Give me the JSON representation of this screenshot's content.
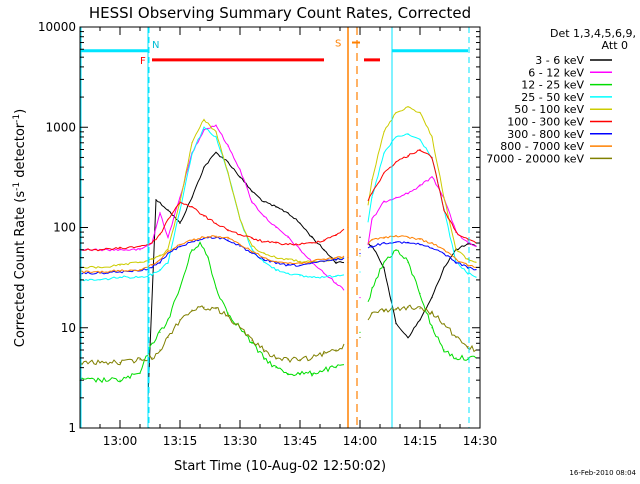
{
  "chart_data": {
    "type": "line",
    "title": "HESSI Observing Summary Count Rates, Corrected",
    "xlabel": "Start Time (10-Aug-02 12:50:02)",
    "ylabel": "Corrected Count Rate (s⁻¹ detector⁻¹)",
    "ylabel_main": "Corrected Count Rate (s",
    "ylabel_sup1": "-1",
    "ylabel_mid": " detector",
    "ylabel_sup2": "-1",
    "ylabel_end": ")",
    "footer": "16-Feb-2010 08:04",
    "y_scale": "log",
    "ylim": [
      1,
      10000
    ],
    "y_ticks": [
      1,
      10,
      100,
      1000,
      10000
    ],
    "y_tick_labels": [
      "1",
      "10",
      "100",
      "1000",
      "10000"
    ],
    "xlim": [
      "12:50",
      "14:30"
    ],
    "x_ticks": [
      "13:00",
      "13:15",
      "13:30",
      "13:45",
      "14:00",
      "14:15",
      "14:30"
    ],
    "legend": {
      "title_line1": "Det 1,3,4,5,6,9,",
      "title_line2": "Att 0",
      "placement": "right"
    },
    "series": [
      {
        "name": "3 - 6 keV",
        "color": "#000000",
        "x": [
          "13:07",
          "13:09",
          "13:12",
          "13:15",
          "13:18",
          "13:21",
          "13:24",
          "13:27",
          "13:30",
          "13:33",
          "13:36",
          "13:39",
          "13:42",
          "13:45",
          "13:48",
          "13:51",
          "13:54",
          "13:57",
          "14:00",
          "14:03",
          "14:06",
          "14:09",
          "14:12",
          "14:15",
          "14:18",
          "14:21",
          "14:24",
          "14:27",
          "14:29"
        ],
        "values": [
          2,
          190,
          150,
          110,
          200,
          400,
          560,
          450,
          320,
          230,
          180,
          160,
          140,
          110,
          80,
          60,
          45,
          45,
          80,
          65,
          40,
          11,
          8,
          12,
          20,
          40,
          60,
          68,
          65
        ]
      },
      {
        "name": "6 - 12 keV",
        "color": "#ff00ff",
        "x": [
          "12:50",
          "12:55",
          "13:00",
          "13:05",
          "13:08",
          "13:10",
          "13:12",
          "13:15",
          "13:18",
          "13:21",
          "13:24",
          "13:27",
          "13:30",
          "13:33",
          "13:36",
          "13:39",
          "13:42",
          "13:45",
          "13:48",
          "13:51",
          "13:54",
          "13:57",
          "14:00",
          "14:03",
          "14:06",
          "14:09",
          "14:12",
          "14:15",
          "14:18",
          "14:21",
          "14:24",
          "14:27",
          "14:29"
        ],
        "values": [
          60,
          60,
          60,
          60,
          70,
          140,
          80,
          200,
          550,
          950,
          1050,
          650,
          380,
          180,
          130,
          100,
          80,
          60,
          45,
          35,
          28,
          22,
          20,
          120,
          180,
          200,
          220,
          260,
          320,
          200,
          90,
          70,
          65
        ]
      },
      {
        "name": "12 - 25 keV",
        "color": "#00dd00",
        "x": [
          "12:50",
          "12:55",
          "13:00",
          "13:05",
          "13:08",
          "13:10",
          "13:12",
          "13:15",
          "13:18",
          "13:20",
          "13:22",
          "13:24",
          "13:27",
          "13:30",
          "13:33",
          "13:36",
          "13:39",
          "13:42",
          "13:45",
          "13:48",
          "13:51",
          "13:54",
          "13:57",
          "14:00",
          "14:03",
          "14:06",
          "14:09",
          "14:12",
          "14:15",
          "14:18",
          "14:21",
          "14:24",
          "14:27",
          "14:29"
        ],
        "values": [
          3,
          3,
          3,
          3.5,
          7,
          9,
          12,
          25,
          60,
          70,
          50,
          25,
          14,
          10,
          7,
          5,
          4,
          3.5,
          3.5,
          3.5,
          3.8,
          4,
          4.5,
          9,
          25,
          45,
          60,
          45,
          22,
          10,
          6,
          5,
          5,
          5
        ]
      },
      {
        "name": "25 - 50 keV",
        "color": "#00ffff",
        "x": [
          "12:50",
          "12:55",
          "13:00",
          "13:05",
          "13:08",
          "13:10",
          "13:12",
          "13:15",
          "13:18",
          "13:21",
          "13:24",
          "13:27",
          "13:30",
          "13:33",
          "13:36",
          "13:39",
          "13:42",
          "13:45",
          "13:48",
          "13:51",
          "13:54",
          "13:57",
          "14:00",
          "14:03",
          "14:06",
          "14:09",
          "14:12",
          "14:15",
          "14:18",
          "14:21",
          "14:24",
          "14:27",
          "14:29"
        ],
        "values": [
          30,
          30,
          32,
          32,
          34,
          38,
          45,
          150,
          550,
          1000,
          800,
          350,
          120,
          60,
          45,
          38,
          35,
          33,
          32,
          32,
          33,
          35,
          36,
          200,
          550,
          800,
          850,
          750,
          500,
          150,
          45,
          35,
          32
        ]
      },
      {
        "name": "50 - 100 keV",
        "color": "#cccc00",
        "x": [
          "12:50",
          "12:55",
          "13:00",
          "13:05",
          "13:08",
          "13:10",
          "13:12",
          "13:15",
          "13:18",
          "13:21",
          "13:24",
          "13:27",
          "13:30",
          "13:33",
          "13:36",
          "13:39",
          "13:42",
          "13:45",
          "13:48",
          "13:51",
          "13:54",
          "13:57",
          "14:00",
          "14:03",
          "14:06",
          "14:09",
          "14:12",
          "14:15",
          "14:18",
          "14:21",
          "14:24",
          "14:27",
          "14:29"
        ],
        "values": [
          40,
          40,
          42,
          45,
          48,
          52,
          60,
          180,
          700,
          1200,
          900,
          350,
          120,
          65,
          55,
          50,
          48,
          46,
          45,
          46,
          48,
          50,
          52,
          300,
          900,
          1400,
          1600,
          1400,
          800,
          200,
          60,
          48,
          45
        ]
      },
      {
        "name": "100 - 300 keV",
        "color": "#ff0000",
        "x": [
          "12:50",
          "12:55",
          "13:00",
          "13:05",
          "13:08",
          "13:10",
          "13:12",
          "13:15",
          "13:18",
          "13:21",
          "13:24",
          "13:27",
          "13:30",
          "13:33",
          "13:36",
          "13:39",
          "13:42",
          "13:45",
          "13:48",
          "13:51",
          "13:54",
          "13:57",
          "14:00",
          "14:03",
          "14:06",
          "14:09",
          "14:12",
          "14:15",
          "14:18",
          "14:21",
          "14:24",
          "14:27",
          "14:29"
        ],
        "values": [
          60,
          60,
          62,
          65,
          70,
          85,
          120,
          180,
          160,
          130,
          110,
          95,
          85,
          78,
          72,
          70,
          68,
          68,
          70,
          75,
          85,
          100,
          130,
          220,
          350,
          450,
          520,
          600,
          500,
          150,
          90,
          75,
          70
        ]
      },
      {
        "name": "300 - 800 keV",
        "color": "#0000ff",
        "x": [
          "12:50",
          "12:55",
          "13:00",
          "13:05",
          "13:08",
          "13:10",
          "13:12",
          "13:15",
          "13:18",
          "13:21",
          "13:24",
          "13:27",
          "13:30",
          "13:33",
          "13:36",
          "13:39",
          "13:42",
          "13:45",
          "13:48",
          "13:51",
          "13:54",
          "13:57",
          "14:00",
          "14:03",
          "14:06",
          "14:09",
          "14:12",
          "14:15",
          "14:18",
          "14:21",
          "14:24",
          "14:27",
          "14:29"
        ],
        "values": [
          35,
          35,
          36,
          37,
          40,
          45,
          55,
          65,
          72,
          78,
          80,
          75,
          65,
          55,
          48,
          44,
          42,
          42,
          44,
          46,
          48,
          50,
          55,
          65,
          70,
          72,
          70,
          68,
          62,
          55,
          45,
          40,
          38
        ]
      },
      {
        "name": "800 - 7000 keV",
        "color": "#ff8000",
        "x": [
          "12:50",
          "12:55",
          "13:00",
          "13:05",
          "13:08",
          "13:10",
          "13:12",
          "13:15",
          "13:18",
          "13:21",
          "13:24",
          "13:27",
          "13:30",
          "13:33",
          "13:36",
          "13:39",
          "13:42",
          "13:45",
          "13:48",
          "13:51",
          "13:54",
          "13:57",
          "14:00",
          "14:03",
          "14:06",
          "14:09",
          "14:12",
          "14:15",
          "14:18",
          "14:21",
          "14:24",
          "14:27",
          "14:29"
        ],
        "values": [
          36,
          36,
          37,
          38,
          42,
          48,
          58,
          68,
          75,
          80,
          82,
          78,
          68,
          58,
          50,
          46,
          44,
          44,
          46,
          48,
          50,
          52,
          60,
          75,
          80,
          82,
          80,
          76,
          70,
          60,
          48,
          42,
          40
        ]
      },
      {
        "name": "7000 - 20000 keV",
        "color": "#808000",
        "x": [
          "12:50",
          "12:55",
          "13:00",
          "13:05",
          "13:08",
          "13:10",
          "13:12",
          "13:15",
          "13:18",
          "13:21",
          "13:24",
          "13:27",
          "13:30",
          "13:33",
          "13:36",
          "13:39",
          "13:42",
          "13:45",
          "13:48",
          "13:51",
          "13:54",
          "13:57",
          "14:00",
          "14:03",
          "14:06",
          "14:09",
          "14:12",
          "14:15",
          "14:18",
          "14:21",
          "14:24",
          "14:27",
          "14:29"
        ],
        "values": [
          4.5,
          4.5,
          4.5,
          4.8,
          5,
          6,
          8,
          12,
          15,
          16,
          15.5,
          13,
          10,
          7.5,
          6,
          5,
          4.8,
          4.8,
          5,
          5.5,
          6,
          7,
          8,
          14,
          15,
          15.5,
          16,
          15.5,
          14,
          11,
          8,
          6.5,
          6
        ]
      }
    ],
    "annotations": {
      "N_label": "N",
      "F_label": "F",
      "S_label": "S",
      "night_segments": [
        {
          "x": [
            "12:50",
            "13:07"
          ],
          "y": 5800
        },
        {
          "x": [
            "14:08",
            "14:27"
          ],
          "y": 5800
        }
      ],
      "night_vlines": [
        "13:07",
        "14:08"
      ],
      "night_vlines_dashed": [
        "13:07",
        "14:27"
      ],
      "flare_segments": [
        {
          "x": [
            "13:08",
            "13:51"
          ],
          "y": 4700
        },
        {
          "x": [
            "14:01",
            "14:05"
          ],
          "y": 4700
        }
      ],
      "saa_segment": {
        "x": [
          "13:58",
          "14:00"
        ],
        "y": 7000
      },
      "saa_vlines_solid": [
        "13:57"
      ],
      "saa_vlines_dashed": [
        "13:59"
      ]
    }
  }
}
